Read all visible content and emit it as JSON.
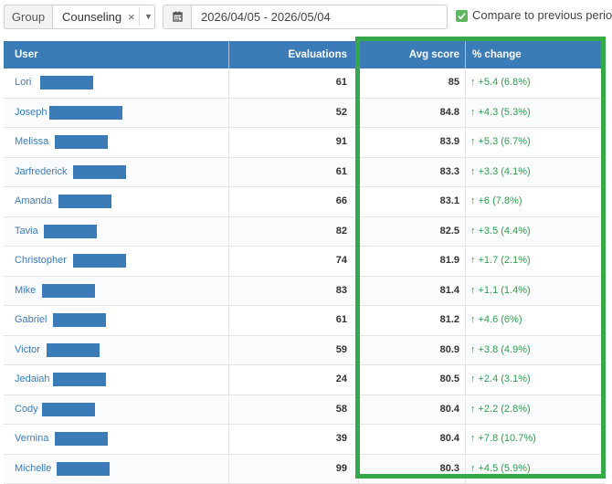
{
  "filters": {
    "group_label": "Group",
    "group_value": "Counseling",
    "clear_symbol": "×",
    "caret_symbol": "▼",
    "calendar_icon": "calendar-icon",
    "date_range": "2026/04/05 - 2026/05/04",
    "compare_label": "Compare to previous period",
    "compare_checked": true
  },
  "table": {
    "headers": {
      "user": "User",
      "evaluations": "Evaluations",
      "avg_score": "Avg score",
      "pct_change": "% change"
    },
    "arrow_symbol": "↑",
    "rows": [
      {
        "name": "Lori",
        "evaluations": "61",
        "avg": "85",
        "change": "+5.4 (6.8%)"
      },
      {
        "name": "Joseph",
        "evaluations": "52",
        "avg": "84.8",
        "change": "+4.3 (5.3%)"
      },
      {
        "name": "Melissa",
        "evaluations": "91",
        "avg": "83.9",
        "change": "+5.3 (6.7%)"
      },
      {
        "name": "Jarfrederick",
        "evaluations": "61",
        "avg": "83.3",
        "change": "+3.3 (4.1%)"
      },
      {
        "name": "Amanda",
        "evaluations": "66",
        "avg": "83.1",
        "change": "+6 (7.8%)"
      },
      {
        "name": "Tavia",
        "evaluations": "82",
        "avg": "82.5",
        "change": "+3.5 (4.4%)"
      },
      {
        "name": "Christopher",
        "evaluations": "74",
        "avg": "81.9",
        "change": "+1.7 (2.1%)"
      },
      {
        "name": "Mike",
        "evaluations": "83",
        "avg": "81.4",
        "change": "+1.1 (1.4%)"
      },
      {
        "name": "Gabriel",
        "evaluations": "61",
        "avg": "81.2",
        "change": "+4.6 (6%)"
      },
      {
        "name": "Victor",
        "evaluations": "59",
        "avg": "80.9",
        "change": "+3.8 (4.9%)"
      },
      {
        "name": "Jedaiah",
        "evaluations": "24",
        "avg": "80.5",
        "change": "+2.4 (3.1%)"
      },
      {
        "name": "Cody",
        "evaluations": "58",
        "avg": "80.4",
        "change": "+2.2 (2.8%)"
      },
      {
        "name": "Vernina",
        "evaluations": "39",
        "avg": "80.4",
        "change": "+7.8 (10.7%)"
      },
      {
        "name": "Michelle",
        "evaluations": "99",
        "avg": "80.3",
        "change": "+4.5 (5.9%)"
      }
    ]
  },
  "colors": {
    "header_blue": "#3a7bb8",
    "positive_green": "#2f9e4f",
    "highlight_green": "#35a84a",
    "checkbox_green": "#5cb85c"
  }
}
